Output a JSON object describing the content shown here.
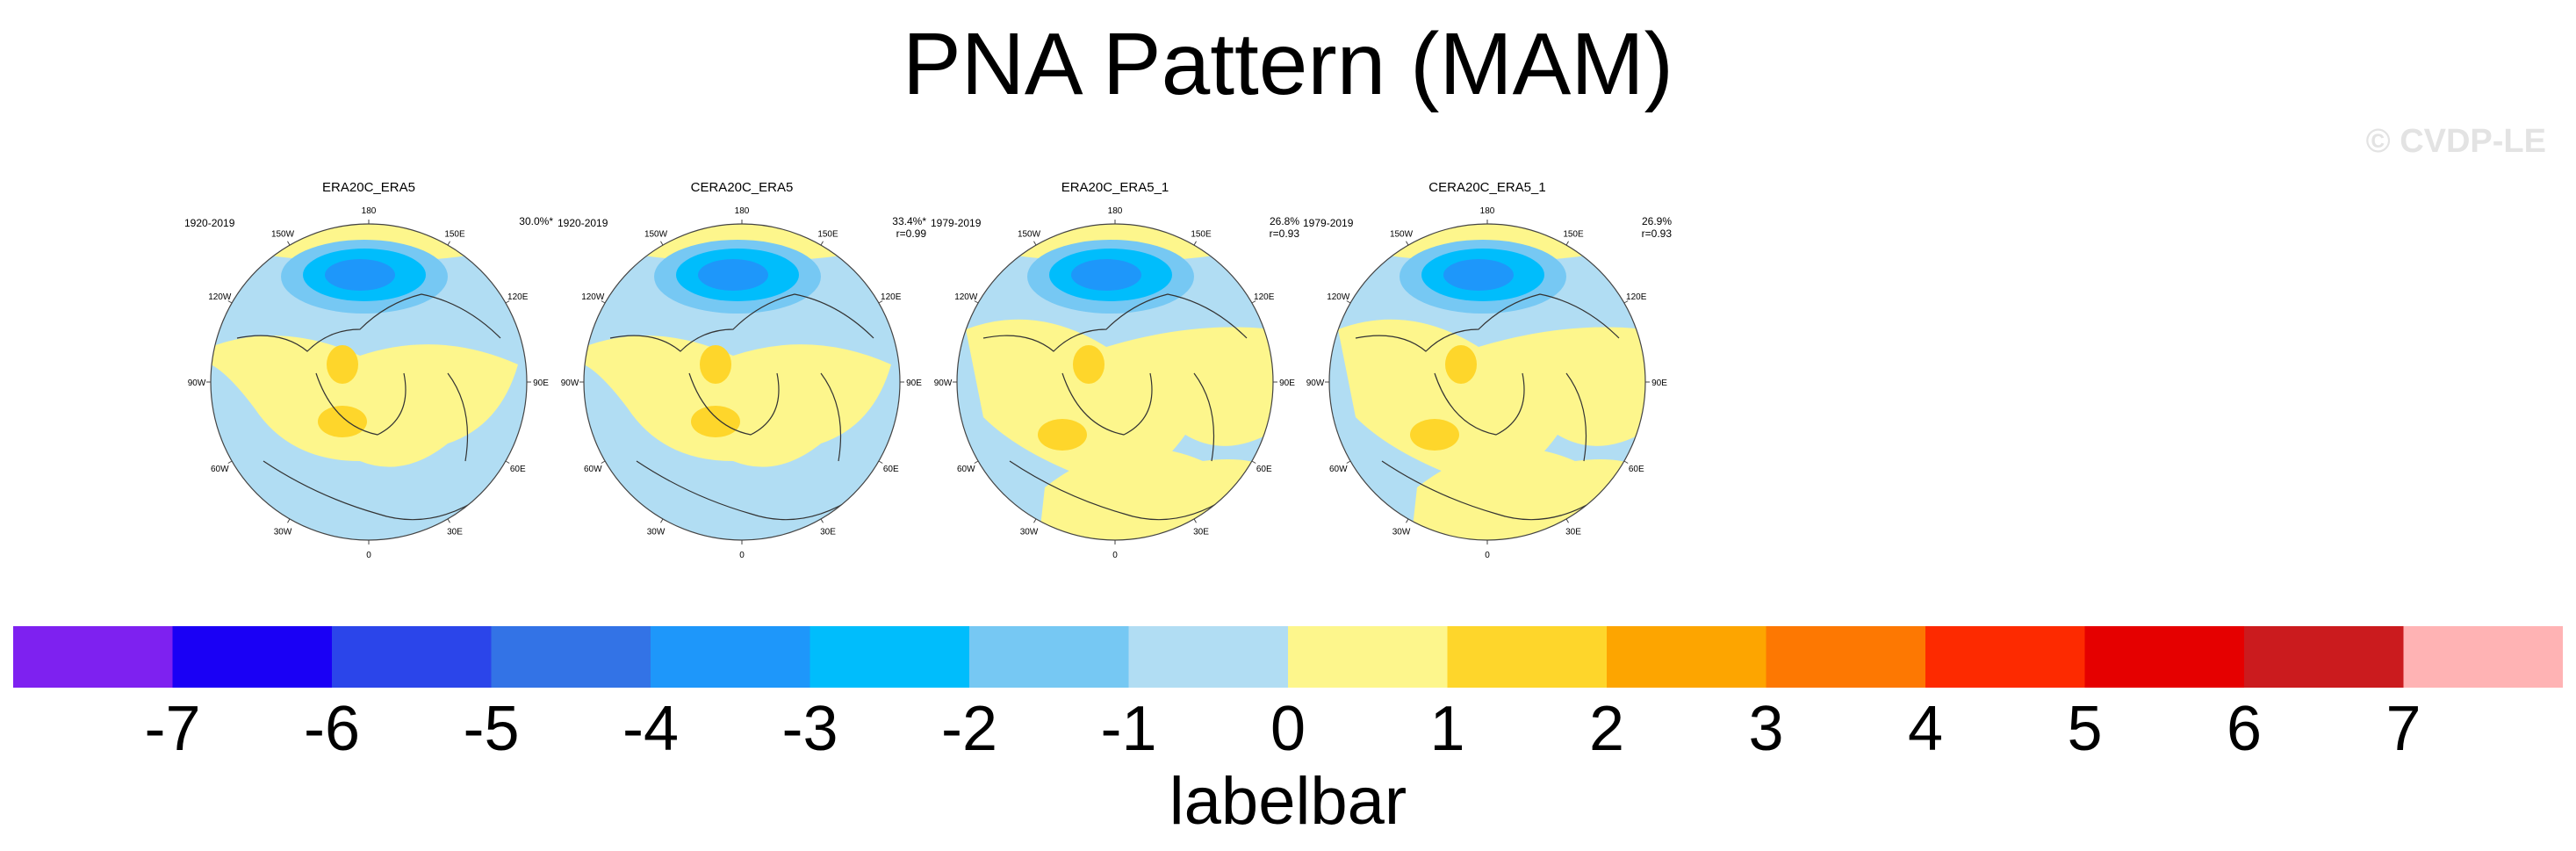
{
  "title": "PNA Pattern (MAM)",
  "watermark": "© CVDP-LE",
  "panels": [
    {
      "title": "ERA20C_ERA5",
      "years": "1920-2019",
      "pct": "30.0%*",
      "r": ""
    },
    {
      "title": "CERA20C_ERA5",
      "years": "1920-2019",
      "pct": "33.4%*",
      "r": "r=0.99"
    },
    {
      "title": "ERA20C_ERA5_1",
      "years": "1979-2019",
      "pct": "26.8%",
      "r": "r=0.93"
    },
    {
      "title": "CERA20C_ERA5_1",
      "years": "1979-2019",
      "pct": "26.9%",
      "r": "r=0.93"
    }
  ],
  "lon_labels": [
    "180",
    "150E",
    "120E",
    "90E",
    "60E",
    "30E",
    "0",
    "30W",
    "60W",
    "90W",
    "120W",
    "150W"
  ],
  "colorbar": {
    "title": "labelbar",
    "ticks": [
      "-7",
      "-6",
      "-5",
      "-4",
      "-3",
      "-2",
      "-1",
      "0",
      "1",
      "2",
      "3",
      "4",
      "5",
      "6",
      "7"
    ],
    "colors": [
      "#7e21f0",
      "#1a00f5",
      "#2b45ea",
      "#3373e6",
      "#1e97fa",
      "#00bdfc",
      "#76c8f3",
      "#b1ddf3",
      "#fdf68c",
      "#fed62b",
      "#fda500",
      "#fd7802",
      "#fd2a00",
      "#e50000",
      "#cb1b1e",
      "#ffb3b4"
    ]
  },
  "icons": {
    "colorbar": "colorbar-swatch"
  }
}
